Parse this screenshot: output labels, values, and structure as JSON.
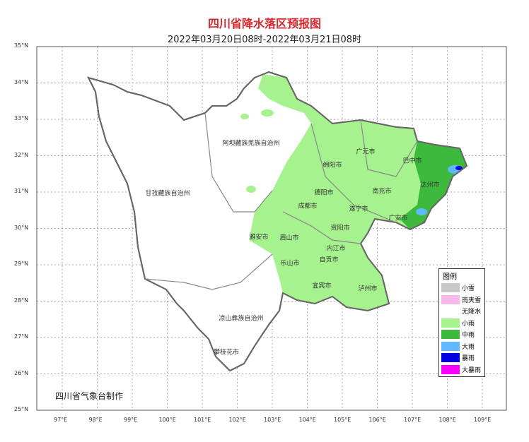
{
  "title": "四川省降水落区预报图",
  "subtitle": "2022年03月20日08时-2022年03月21日08时",
  "lat_ticks": [
    "35°N",
    "34°N",
    "33°N",
    "32°N",
    "31°N",
    "30°N",
    "29°N",
    "28°N",
    "27°N",
    "26°N",
    "25°N"
  ],
  "lon_ticks": [
    "97°E",
    "98°E",
    "99°E",
    "100°E",
    "101°E",
    "102°E",
    "103°E",
    "104°E",
    "105°E",
    "106°E",
    "107°E",
    "108°E",
    "109°E"
  ],
  "regions": [
    "阿坝藏族羌族自治州",
    "甘孜藏族自治州",
    "凉山彝族自治州",
    "攀枝花市",
    "广元市",
    "巴中市",
    "绵阳市",
    "达州市",
    "德阳市",
    "南充市",
    "成都市",
    "遂宁市",
    "广安市",
    "资阳市",
    "雅安市",
    "眉山市",
    "内江市",
    "自贡市",
    "乐山市",
    "宜宾市",
    "泸州市"
  ],
  "legend": {
    "title": "图例",
    "items": [
      {
        "label": "小雪",
        "color": "#c8c8c8"
      },
      {
        "label": "雨夹雪",
        "color": "#f7b8ea"
      },
      {
        "label": "无降水",
        "color": "#ffffff"
      },
      {
        "label": "小雨",
        "color": "#a6f28f"
      },
      {
        "label": "中雨",
        "color": "#3dba3d"
      },
      {
        "label": "大雨",
        "color": "#61b8ff"
      },
      {
        "label": "暴雨",
        "color": "#0000e1"
      },
      {
        "label": "大暴雨",
        "color": "#fa00fa"
      }
    ]
  },
  "footer": "四川省气象台制作"
}
